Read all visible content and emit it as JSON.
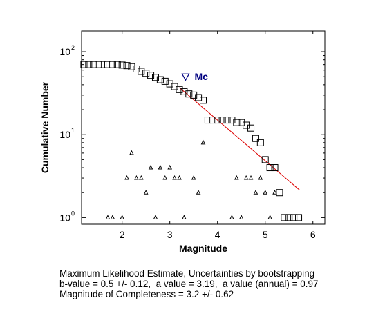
{
  "chart_data": {
    "type": "scatter",
    "xlabel": "Magnitude",
    "ylabel": "Cumulative Number",
    "xlim": [
      1.15,
      6.25
    ],
    "ylim_log10": [
      -0.08,
      2.25
    ],
    "y_scale": "log",
    "x_ticks": [
      2,
      3,
      4,
      5,
      6
    ],
    "y_ticks": [
      {
        "value": 1,
        "base": "10",
        "exp": "0"
      },
      {
        "value": 10,
        "base": "10",
        "exp": "1"
      },
      {
        "value": 100,
        "base": "10",
        "exp": "2"
      }
    ],
    "grid": false,
    "series": [
      {
        "marker": "square",
        "color": "#000000",
        "x": [
          1.2,
          1.3,
          1.4,
          1.5,
          1.6,
          1.7,
          1.8,
          1.9,
          2.0,
          2.1,
          2.2,
          2.3,
          2.4,
          2.5,
          2.6,
          2.7,
          2.8,
          2.9,
          3.0,
          3.1,
          3.2,
          3.3,
          3.4,
          3.5,
          3.6,
          3.7,
          3.8,
          3.9,
          4.0,
          4.1,
          4.2,
          4.3,
          4.4,
          4.5,
          4.6,
          4.7,
          4.8,
          4.9,
          5.0,
          5.1,
          5.2,
          5.3,
          5.4,
          5.5,
          5.6,
          5.7
        ],
        "y": [
          70,
          70,
          70,
          70,
          70,
          70,
          70,
          70,
          69,
          68,
          66,
          62,
          58,
          55,
          52,
          49,
          46,
          44,
          41,
          38,
          35,
          33,
          31,
          30,
          28,
          26,
          15,
          15,
          15,
          15,
          15,
          15,
          14,
          14,
          13,
          12,
          9,
          8,
          5,
          4,
          4,
          2,
          1,
          1,
          1,
          1
        ]
      },
      {
        "marker": "triangle",
        "color": "#000000",
        "x": [
          1.7,
          1.8,
          2.0,
          2.1,
          2.2,
          2.3,
          2.4,
          2.5,
          2.6,
          2.7,
          2.8,
          2.9,
          3.0,
          3.1,
          3.2,
          3.3,
          3.5,
          3.6,
          3.7,
          4.3,
          4.4,
          4.5,
          4.6,
          4.7,
          4.8,
          4.9,
          5.0,
          5.1,
          5.2
        ],
        "y": [
          1,
          1,
          1,
          3,
          6,
          3,
          3,
          2,
          4,
          1,
          4,
          3,
          4,
          3,
          3,
          1,
          3,
          2,
          8,
          1,
          3,
          1,
          3,
          3,
          2,
          3,
          2,
          1,
          2
        ]
      }
    ],
    "fit_line": {
      "color": "#dd0000",
      "x": [
        3.2,
        5.72
      ],
      "y": [
        37,
        2.15
      ]
    },
    "mc_marker": {
      "x": 3.2,
      "y": 50,
      "label": "Mc",
      "color": "#000080"
    }
  },
  "caption": {
    "line1": "Maximum Likelihood Estimate, Uncertainties by bootstrapping",
    "line2": "b-value = 0.5 +/- 0.12,  a value = 3.19,  a value (annual) = 0.97",
    "line3": "Magnitude of Completeness = 3.2 +/- 0.62"
  }
}
